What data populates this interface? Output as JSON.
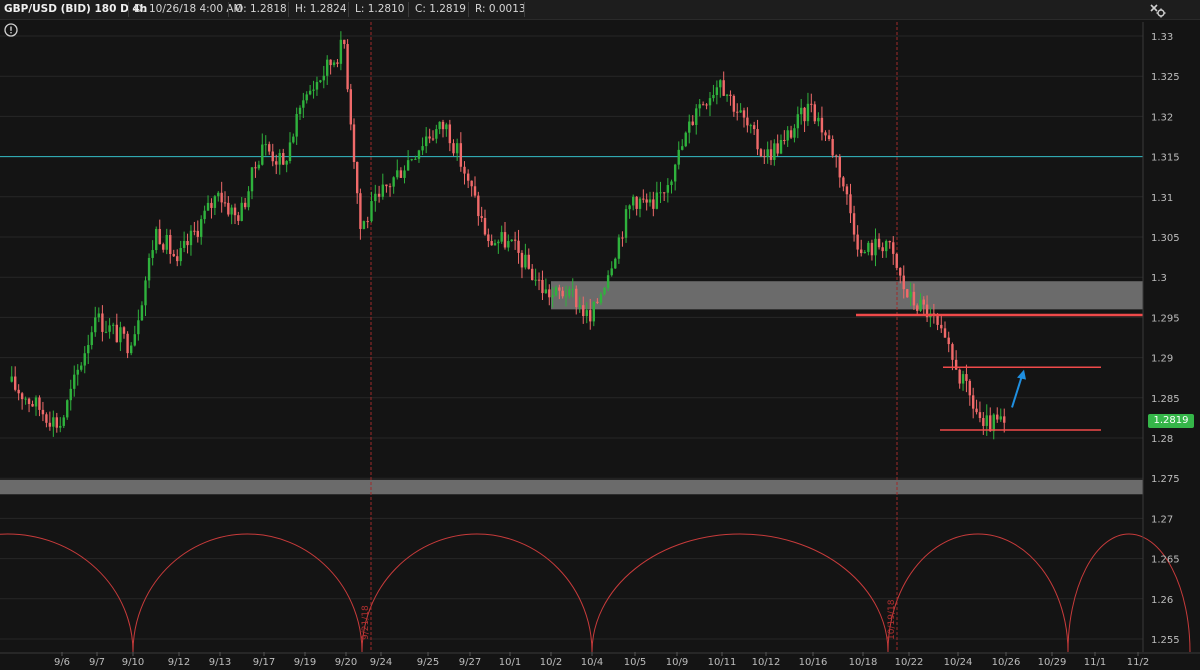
{
  "header": {
    "symbol": "GBP/USD (BID) 180 D 4h",
    "date": "D: 10/26/18 4:00 AM",
    "open": "O: 1.2818",
    "high": "H: 1.2824",
    "low": "L: 1.2810",
    "close": "C: 1.2819",
    "range": "R: 0.0013"
  },
  "last_price_tag": "1.2819",
  "colors": {
    "background": "#141414",
    "up_candle": "#2fb23d",
    "down_candle": "#f06a6a",
    "resistance_line": "#32bcc4",
    "zone": "#7a7a7a",
    "cycle": "#c83b3b",
    "annotation_line": "#f04a4a",
    "arrow": "#1f8fe0"
  },
  "icons": {
    "alert": "alert-icon",
    "settings": "style-settings-icon"
  },
  "chart_data": {
    "type": "candlestick",
    "title": "GBP/USD (BID) 180 D 4h",
    "ylim": [
      1.2535,
      1.3335
    ],
    "y_ticks": [
      "1.33",
      "1.325",
      "1.32",
      "1.315",
      "1.31",
      "1.305",
      "1.3",
      "1.295",
      "1.29",
      "1.285",
      "1.28",
      "1.275",
      "1.27",
      "1.265",
      "1.26",
      "1.255"
    ],
    "x_ticks": [
      "9/6",
      "9/7",
      "9/10",
      "9/12",
      "9/13",
      "9/17",
      "9/19",
      "9/20",
      "9/24",
      "9/25",
      "9/27",
      "10/1",
      "10/2",
      "10/4",
      "10/5",
      "10/9",
      "10/11",
      "10/12",
      "10/16",
      "10/18",
      "10/22",
      "10/24",
      "10/26",
      "10/29",
      "11/1",
      "11/2"
    ],
    "vertical_markers": [
      {
        "date": "9/21/18"
      },
      {
        "date": "10/19/18"
      }
    ],
    "horizontal_lines": [
      {
        "price": 1.315,
        "color": "cyan"
      }
    ],
    "zones": [
      {
        "from_date": "10/2",
        "to_date": "right-edge",
        "low": 1.296,
        "high": 1.2995
      },
      {
        "from_date": "left-edge",
        "to_date": "right-edge",
        "low": 1.273,
        "high": 1.2748
      }
    ],
    "annotation_lines": [
      {
        "price": 1.2953,
        "from_date": "10/18",
        "to_date": "right-edge"
      },
      {
        "price": 1.2888,
        "from_date": "10/23",
        "to_date": "10/29"
      },
      {
        "price": 1.281,
        "from_date": "10/24",
        "to_date": "10/29"
      }
    ],
    "arrow": {
      "from_price": 1.2838,
      "to_price": 1.2885,
      "direction": "up"
    },
    "cycle_troughs": [
      "9/10",
      "9/21",
      "10/4",
      "10/19",
      "10/30"
    ],
    "pivots": [
      {
        "date": "9/5",
        "price": 1.287
      },
      {
        "date": "9/6",
        "price": 1.2815
      },
      {
        "date": "9/7",
        "price": 1.295
      },
      {
        "date": "9/10",
        "price": 1.2915
      },
      {
        "date": "9/11",
        "price": 1.306
      },
      {
        "date": "9/12",
        "price": 1.302
      },
      {
        "date": "9/13",
        "price": 1.3105
      },
      {
        "date": "9/14",
        "price": 1.307
      },
      {
        "date": "9/17",
        "price": 1.3165
      },
      {
        "date": "9/18",
        "price": 1.314
      },
      {
        "date": "9/19",
        "price": 1.322
      },
      {
        "date": "9/20",
        "price": 1.329
      },
      {
        "date": "9/21",
        "price": 1.306
      },
      {
        "date": "9/24",
        "price": 1.31
      },
      {
        "date": "9/25",
        "price": 1.3175
      },
      {
        "date": "9/26",
        "price": 1.319
      },
      {
        "date": "9/27",
        "price": 1.312
      },
      {
        "date": "9/28",
        "price": 1.3045
      },
      {
        "date": "10/1",
        "price": 1.3045
      },
      {
        "date": "10/2",
        "price": 1.2975
      },
      {
        "date": "10/3",
        "price": 1.2985
      },
      {
        "date": "10/4",
        "price": 1.2945
      },
      {
        "date": "10/5",
        "price": 1.31
      },
      {
        "date": "10/8",
        "price": 1.3085
      },
      {
        "date": "10/9",
        "price": 1.314
      },
      {
        "date": "10/10",
        "price": 1.321
      },
      {
        "date": "10/11",
        "price": 1.3245
      },
      {
        "date": "10/12",
        "price": 1.315
      },
      {
        "date": "10/15",
        "price": 1.317
      },
      {
        "date": "10/16",
        "price": 1.3215
      },
      {
        "date": "10/17",
        "price": 1.315
      },
      {
        "date": "10/18",
        "price": 1.303
      },
      {
        "date": "10/19",
        "price": 1.3045
      },
      {
        "date": "10/22",
        "price": 1.2975
      },
      {
        "date": "10/23",
        "price": 1.2955
      },
      {
        "date": "10/24",
        "price": 1.2885
      },
      {
        "date": "10/25",
        "price": 1.2815
      },
      {
        "date": "10/26",
        "price": 1.2819
      }
    ]
  }
}
